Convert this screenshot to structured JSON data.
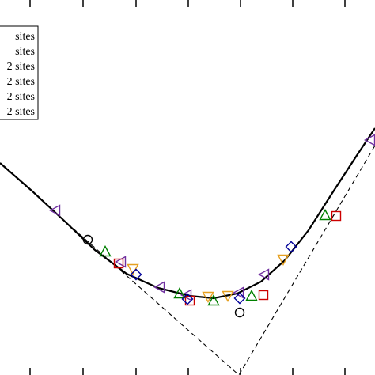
{
  "chart_data": {
    "type": "scatter",
    "title": "",
    "xlabel": "",
    "ylabel": "",
    "xlim": [
      0,
      474
    ],
    "ylim": [
      474,
      0
    ],
    "x_ticks_bottom": [
      38,
      105,
      172,
      238,
      304,
      370,
      436
    ],
    "x_ticks_top": [
      38,
      105,
      172,
      238,
      304,
      370,
      436
    ],
    "grid": false,
    "legend": {
      "placement": "top-left",
      "entries": [
        {
          "label": "sites",
          "marker": "none"
        },
        {
          "label": "sites",
          "marker": "none"
        },
        {
          "label": "2 sites",
          "marker": "none"
        },
        {
          "label": "2 sites",
          "marker": "none"
        },
        {
          "label": "2 sites",
          "marker": "none"
        },
        {
          "label": "2 sites",
          "marker": "none"
        }
      ]
    },
    "lines": [
      {
        "style": "solid",
        "color": "#000000",
        "points": [
          [
            0,
            268
          ],
          [
            40,
            233
          ],
          [
            80,
            196
          ],
          [
            120,
            158
          ],
          [
            160,
            128
          ],
          [
            200,
            110
          ],
          [
            240,
            100
          ],
          [
            270,
            97
          ],
          [
            300,
            103
          ],
          [
            330,
            118
          ],
          [
            360,
            145
          ],
          [
            390,
            183
          ],
          [
            420,
            230
          ],
          [
            450,
            276
          ],
          [
            474,
            312
          ]
        ]
      },
      {
        "style": "dashed",
        "color": "#000000",
        "points": [
          [
            70,
            205
          ],
          [
            302,
            0
          ],
          [
            474,
            290
          ]
        ]
      }
    ],
    "series": [
      {
        "marker": "circle",
        "color": "#000000",
        "points": [
          [
            111,
            171
          ],
          [
            303,
            79
          ]
        ]
      },
      {
        "marker": "triangle-left",
        "color": "#7030a0",
        "points": [
          [
            70,
            208
          ],
          [
            153,
            143
          ],
          [
            202,
            111
          ],
          [
            236,
            101
          ],
          [
            302,
            104
          ],
          [
            334,
            127
          ],
          [
            468,
            297
          ]
        ]
      },
      {
        "marker": "triangle-up",
        "color": "#008000",
        "points": [
          [
            133,
            156
          ],
          [
            227,
            103
          ],
          [
            270,
            94
          ],
          [
            318,
            100
          ],
          [
            411,
            202
          ]
        ]
      },
      {
        "marker": "square",
        "color": "#cc0000",
        "points": [
          [
            150,
            141
          ],
          [
            240,
            94
          ],
          [
            333,
            101
          ],
          [
            425,
            201
          ]
        ]
      },
      {
        "marker": "triangle-down",
        "color": "#e6a020",
        "points": [
          [
            168,
            134
          ],
          [
            263,
            99
          ],
          [
            288,
            100
          ],
          [
            358,
            146
          ]
        ]
      },
      {
        "marker": "diamond",
        "color": "#000099",
        "points": [
          [
            172,
            127
          ],
          [
            237,
            96
          ],
          [
            303,
            97
          ],
          [
            368,
            162
          ]
        ]
      }
    ]
  }
}
